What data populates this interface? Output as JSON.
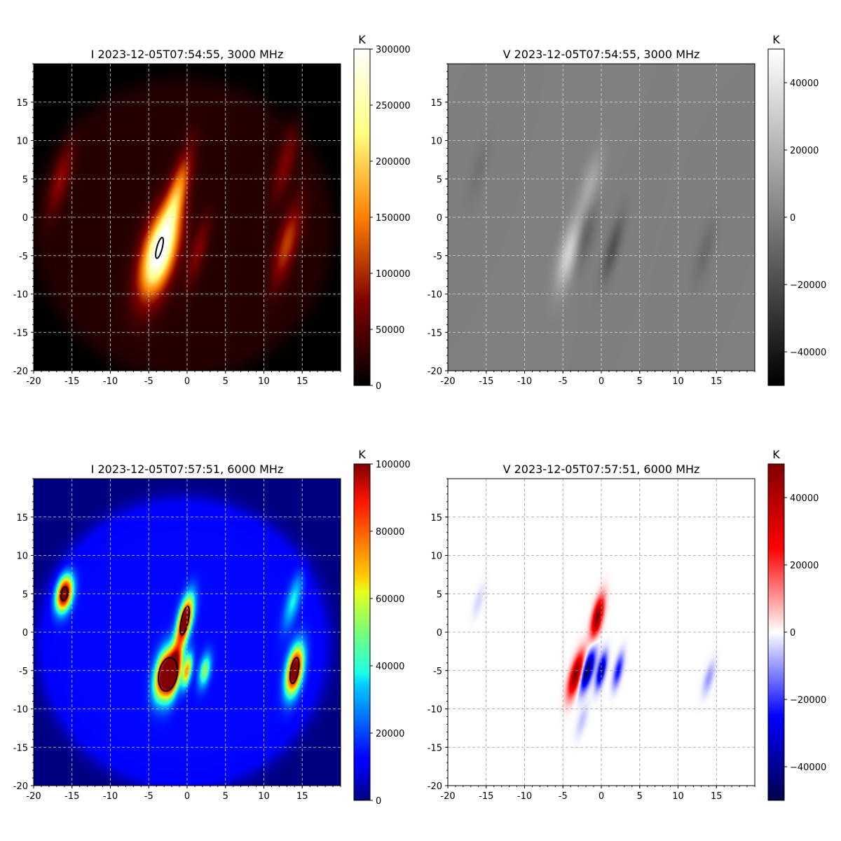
{
  "chart_data": [
    {
      "type": "heatmap",
      "title": "I 2023-12-05T07:54:55, 3000 MHz",
      "stokes": "I",
      "colormap": "afmhot",
      "xlim": [
        -20,
        20
      ],
      "ylim": [
        -20,
        20
      ],
      "xticks": [
        -20,
        -15,
        -10,
        -5,
        0,
        5,
        10,
        15
      ],
      "yticks": [
        -20,
        -15,
        -10,
        -5,
        0,
        5,
        10,
        15
      ],
      "grid": true,
      "colorbar": {
        "label": "K",
        "min": 0,
        "max": 300000,
        "ticks": [
          0,
          50000,
          100000,
          150000,
          200000,
          250000,
          300000
        ]
      },
      "disk": {
        "cx": -0.5,
        "cy": -1.5,
        "r": 19.5,
        "brightness": 22000
      },
      "sources": [
        {
          "x": -16.5,
          "y": 5,
          "sx": 0.8,
          "sy": 3.2,
          "rot": -15,
          "peak": 60000
        },
        {
          "x": -1.3,
          "y": 3,
          "sx": 0.8,
          "sy": 3.8,
          "rot": -15,
          "peak": 130000
        },
        {
          "x": -3.6,
          "y": -4.5,
          "sx": 1.4,
          "sy": 4,
          "rot": -15,
          "peak": 300000
        },
        {
          "x": 1.4,
          "y": -4.5,
          "sx": 0.7,
          "sy": 3.2,
          "rot": -15,
          "peak": 50000
        },
        {
          "x": 13,
          "y": -3.5,
          "sx": 0.9,
          "sy": 3.6,
          "rot": -15,
          "peak": 90000
        },
        {
          "x": 12.8,
          "y": 7,
          "sx": 0.8,
          "sy": 3.5,
          "rot": -15,
          "peak": 50000
        }
      ]
    },
    {
      "type": "heatmap",
      "title": "V 2023-12-05T07:54:55, 3000 MHz",
      "stokes": "V",
      "colormap": "gray",
      "xlim": [
        -20,
        20
      ],
      "ylim": [
        -20,
        20
      ],
      "xticks": [
        -20,
        -15,
        -10,
        -5,
        0,
        5,
        10,
        15
      ],
      "yticks": [
        -20,
        -15,
        -10,
        -5,
        0,
        5,
        10,
        15
      ],
      "grid": true,
      "colorbar": {
        "label": "K",
        "min": -50000,
        "max": 50000,
        "ticks": [
          -40000,
          -20000,
          0,
          20000,
          40000
        ]
      },
      "sources": [
        {
          "x": -4,
          "y": -4.5,
          "sx": 0.9,
          "sy": 3.2,
          "rot": -15,
          "peak": 38000
        },
        {
          "x": -2.5,
          "y": -3,
          "sx": 0.8,
          "sy": 3,
          "rot": -15,
          "peak": -22000
        },
        {
          "x": -1.5,
          "y": 4,
          "sx": 0.8,
          "sy": 3,
          "rot": -15,
          "peak": 16000
        },
        {
          "x": 1.5,
          "y": -4,
          "sx": 0.6,
          "sy": 3,
          "rot": -15,
          "peak": -18000
        },
        {
          "x": -16,
          "y": 6,
          "sx": 0.7,
          "sy": 3,
          "rot": -15,
          "peak": -5000
        },
        {
          "x": 13.5,
          "y": -4.5,
          "sx": 0.7,
          "sy": 3,
          "rot": -15,
          "peak": -8000
        }
      ]
    },
    {
      "type": "heatmap",
      "title": "I 2023-12-05T07:57:51, 6000 MHz",
      "stokes": "I",
      "colormap": "jet",
      "xlim": [
        -20,
        20
      ],
      "ylim": [
        -20,
        20
      ],
      "xticks": [
        -20,
        -15,
        -10,
        -5,
        0,
        5,
        10,
        15
      ],
      "yticks": [
        -20,
        -15,
        -10,
        -5,
        0,
        5,
        10,
        15
      ],
      "grid": true,
      "colorbar": {
        "label": "K",
        "min": 0,
        "max": 100000,
        "ticks": [
          0,
          20000,
          40000,
          60000,
          80000,
          100000
        ]
      },
      "disk": {
        "cx": -0.5,
        "cy": -1.5,
        "r": 19,
        "brightness": 13000
      },
      "sources": [
        {
          "x": -16,
          "y": 5,
          "sx": 0.7,
          "sy": 1.6,
          "rot": -10,
          "peak": 100000
        },
        {
          "x": -0.3,
          "y": 1.5,
          "sx": 0.6,
          "sy": 2.2,
          "rot": -12,
          "peak": 100000
        },
        {
          "x": -3,
          "y": -5.5,
          "sx": 0.8,
          "sy": 2.2,
          "rot": -10,
          "peak": 100000
        },
        {
          "x": -1.7,
          "y": -5,
          "sx": 0.6,
          "sy": 2.3,
          "rot": -10,
          "peak": 100000
        },
        {
          "x": 0,
          "y": -5,
          "sx": 0.4,
          "sy": 1.5,
          "rot": -10,
          "peak": 60000
        },
        {
          "x": 2.3,
          "y": -5,
          "sx": 0.5,
          "sy": 1.5,
          "rot": -10,
          "peak": 40000
        },
        {
          "x": 14,
          "y": -5,
          "sx": 0.7,
          "sy": 2.2,
          "rot": -10,
          "peak": 100000
        },
        {
          "x": 13.8,
          "y": 4,
          "sx": 0.6,
          "sy": 2.5,
          "rot": -15,
          "peak": 25000
        }
      ],
      "contours": [
        {
          "x": -16,
          "y": 5,
          "rx": 0.45,
          "ry": 0.9,
          "rot": -10
        },
        {
          "x": -0.3,
          "y": 1.5,
          "rx": 0.45,
          "ry": 1.9,
          "rot": -12
        },
        {
          "x": -2.5,
          "y": -5.5,
          "rx": 1.2,
          "ry": 2.2,
          "rot": -10
        },
        {
          "x": 14,
          "y": -5,
          "rx": 0.5,
          "ry": 1.7,
          "rot": -10
        }
      ]
    },
    {
      "type": "heatmap",
      "title": "V 2023-12-05T07:57:51, 6000 MHz",
      "stokes": "V",
      "colormap": "seismic",
      "xlim": [
        -20,
        20
      ],
      "ylim": [
        -20,
        20
      ],
      "xticks": [
        -20,
        -15,
        -10,
        -5,
        0,
        5,
        10,
        15
      ],
      "yticks": [
        -20,
        -15,
        -10,
        -5,
        0,
        5,
        10,
        15
      ],
      "grid": true,
      "colorbar": {
        "label": "K",
        "min": -50000,
        "max": 50000,
        "ticks": [
          -40000,
          -20000,
          0,
          20000,
          40000
        ]
      },
      "sources": [
        {
          "x": -3.3,
          "y": -5.5,
          "sx": 0.5,
          "sy": 2,
          "rot": -15,
          "peak": 50000
        },
        {
          "x": -1.8,
          "y": -5,
          "sx": 0.45,
          "sy": 1.8,
          "rot": -15,
          "peak": -50000
        },
        {
          "x": -0.5,
          "y": 2,
          "sx": 0.45,
          "sy": 1.8,
          "rot": -12,
          "peak": 50000
        },
        {
          "x": 0,
          "y": -5,
          "sx": 0.35,
          "sy": 1.5,
          "rot": -12,
          "peak": -40000
        },
        {
          "x": 2.2,
          "y": -5,
          "sx": 0.35,
          "sy": 1.5,
          "rot": -12,
          "peak": -25000
        },
        {
          "x": -16,
          "y": 4,
          "sx": 0.4,
          "sy": 1.5,
          "rot": -15,
          "peak": -4000
        },
        {
          "x": 14,
          "y": -6,
          "sx": 0.4,
          "sy": 1.5,
          "rot": -15,
          "peak": -10000
        },
        {
          "x": -2.5,
          "y": -11.5,
          "sx": 0.4,
          "sy": 1.5,
          "rot": -15,
          "peak": -6000
        }
      ]
    }
  ]
}
